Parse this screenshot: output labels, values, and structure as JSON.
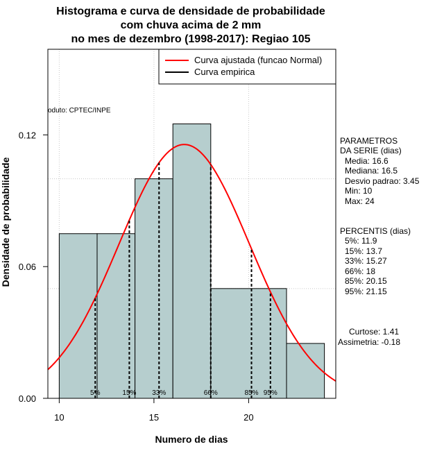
{
  "title_lines": [
    "Histograma e curva de densidade de probabilidade",
    "com chuva acima de 2 mm",
    "no mes de dezembro (1998-2017): Regiao 105"
  ],
  "credit": "oduto: CPTEC/INPE",
  "stats_block": {
    "header": [
      "PARAMETROS",
      "DA SERIE (dias)"
    ],
    "lines": [
      "Media: 16.6",
      "Mediana: 16.5",
      "Desvio padrao: 3.45",
      "Min: 10",
      "Max: 24"
    ]
  },
  "percentis_block": {
    "header": "PERCENTIS (dias)",
    "lines": [
      "5%: 11.9",
      "15%: 13.7",
      "33%: 15.27",
      "66%: 18",
      "85%: 20.15",
      "95%: 21.15"
    ]
  },
  "shape_block": [
    "Curtose: 1.41",
    "Assimetria: -0.18"
  ],
  "colors": {
    "bar_fill": "#b6cece",
    "normal_curve": "#ff0000",
    "empirical_curve": "#000000",
    "grid": "#c8c8c8"
  },
  "chart_data": {
    "type": "bar",
    "xlabel": "Numero de dias",
    "ylabel": "Densidade de probabilidade",
    "xlim": [
      9.4,
      24.6
    ],
    "ylim": [
      0,
      0.159
    ],
    "x_ticks": [
      10,
      15,
      20
    ],
    "y_ticks": [
      0.0,
      0.06,
      0.12
    ],
    "y_tick_labels": [
      "0.00",
      "0.06",
      "0.12"
    ],
    "grid": true,
    "legend_position": "top-right",
    "bins": [
      {
        "from": 10,
        "to": 12,
        "density": 0.075
      },
      {
        "from": 12,
        "to": 14,
        "density": 0.075
      },
      {
        "from": 14,
        "to": 16,
        "density": 0.1
      },
      {
        "from": 16,
        "to": 18,
        "density": 0.125
      },
      {
        "from": 18,
        "to": 22,
        "density": 0.05
      },
      {
        "from": 22,
        "to": 24,
        "density": 0.025
      }
    ],
    "normal_fit": {
      "mean": 16.6,
      "sd": 3.45
    },
    "percentiles": [
      {
        "label": "5%",
        "x": 11.9
      },
      {
        "label": "15%",
        "x": 13.7
      },
      {
        "label": "33%",
        "x": 15.27
      },
      {
        "label": "66%",
        "x": 18
      },
      {
        "label": "85%",
        "x": 20.15
      },
      {
        "label": "95%",
        "x": 21.15
      }
    ],
    "series": [
      {
        "name": "Curva ajustada (funcao Normal)",
        "color": "#ff0000"
      },
      {
        "name": "Curva empirica",
        "color": "#000000"
      }
    ]
  }
}
